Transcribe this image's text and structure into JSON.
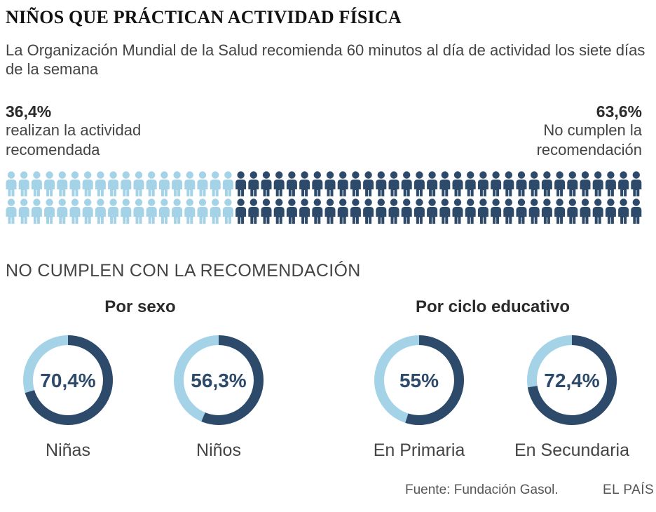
{
  "header": {
    "title": "NIÑOS QUE PRÁCTICAN ACTIVIDAD FÍSICA",
    "subtitle": "La Organización Mundial de la Salud recomienda 60 minutos al día de actividad los siete días de la semana"
  },
  "summary": {
    "left": {
      "value": "36,4%",
      "text": "realizan la actividad recomendada"
    },
    "right": {
      "value": "63,6%",
      "text": "No cumplen la recomendación"
    }
  },
  "section_title": "NO CUMPLEN CON LA RECOMENDACIÓN",
  "groups": [
    "Por sexo",
    "Por ciclo educativo"
  ],
  "footer": {
    "source": "Fuente: Fundación Gasol.",
    "brand": "EL PAÍS"
  },
  "colors": {
    "light": "#a4d3e8",
    "dark": "#2e4a6b"
  },
  "chart_data": [
    {
      "type": "pictogram",
      "icon": "person-icon",
      "series": [
        {
          "name": "realizan la actividad recomendada",
          "value": 36.4
        },
        {
          "name": "No cumplen la recomendación",
          "value": 63.6
        }
      ],
      "units_total": 100
    },
    {
      "type": "pie",
      "title": "Por sexo",
      "items": [
        {
          "label": "Niñas",
          "value": 70.4,
          "value_label": "70,4%"
        },
        {
          "label": "Niños",
          "value": 56.3,
          "value_label": "56,3%"
        }
      ]
    },
    {
      "type": "pie",
      "title": "Por ciclo educativo",
      "items": [
        {
          "label": "En Primaria",
          "value": 55,
          "value_label": "55%"
        },
        {
          "label": "En Secundaria",
          "value": 72.4,
          "value_label": "72,4%"
        }
      ]
    }
  ]
}
